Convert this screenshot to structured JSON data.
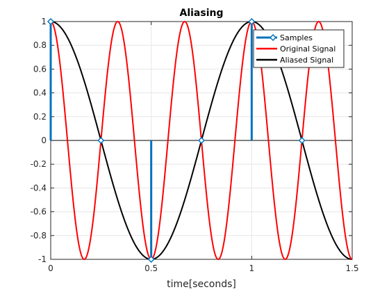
{
  "chart_data": {
    "type": "line",
    "title": "Aliasing",
    "xlabel": "time[seconds]",
    "ylabel": "",
    "xlim": [
      0,
      1.5
    ],
    "ylim": [
      -1,
      1
    ],
    "grid": true,
    "legend_position": "top-right",
    "x_ticks": [
      {
        "value": 0,
        "label": "0"
      },
      {
        "value": 0.5,
        "label": "0.5"
      },
      {
        "value": 1,
        "label": "1"
      },
      {
        "value": 1.5,
        "label": "1.5"
      }
    ],
    "y_ticks": [
      {
        "value": 1,
        "label": "1"
      },
      {
        "value": 0.8,
        "label": "0.8"
      },
      {
        "value": 0.6,
        "label": "0.6"
      },
      {
        "value": 0.4,
        "label": "0.4"
      },
      {
        "value": 0.2,
        "label": "0.2"
      },
      {
        "value": 0,
        "label": "0"
      },
      {
        "value": -0.2,
        "label": "-0.2"
      },
      {
        "value": -0.4,
        "label": "-0.4"
      },
      {
        "value": -0.6,
        "label": "-0.6"
      },
      {
        "value": -0.8,
        "label": "-0.8"
      },
      {
        "value": -1,
        "label": "-1"
      }
    ],
    "series": [
      {
        "name": "Samples",
        "kind": "stem",
        "color": "#0072BD",
        "x": [
          0,
          0.25,
          0.5,
          0.75,
          1.0,
          1.25
        ],
        "y": [
          1,
          0,
          -1,
          0,
          1,
          0
        ]
      },
      {
        "name": "Original Signal",
        "kind": "line",
        "color": "#FF0000",
        "function": "cos(2*pi*3*t)",
        "frequency_hz": 3,
        "amplitude": 1,
        "x_range": [
          0,
          1.5
        ]
      },
      {
        "name": "Aliased Signal",
        "kind": "line",
        "color": "#000000",
        "function": "cos(2*pi*1*t)",
        "frequency_hz": 1,
        "amplitude": 1,
        "x_range": [
          0,
          1.5
        ]
      }
    ]
  }
}
